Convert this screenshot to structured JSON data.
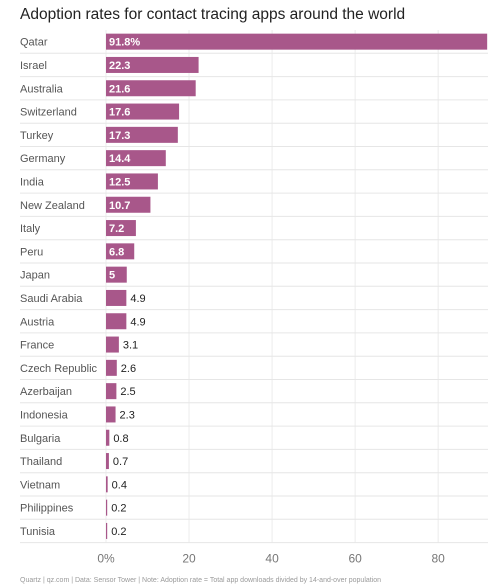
{
  "chart_data": {
    "type": "bar",
    "orientation": "horizontal",
    "title": "Adoption rates for contact tracing apps around the world",
    "footer": "Quartz | qz.com | Data: Sensor Tower | Note: Adoption rate = Total app downloads divided by 14-and-over population",
    "categories": [
      "Qatar",
      "Israel",
      "Australia",
      "Switzerland",
      "Turkey",
      "Germany",
      "India",
      "New Zealand",
      "Italy",
      "Peru",
      "Japan",
      "Saudi Arabia",
      "Austria",
      "France",
      "Czech Republic",
      "Azerbaijan",
      "Indonesia",
      "Bulgaria",
      "Thailand",
      "Vietnam",
      "Philippines",
      "Tunisia"
    ],
    "values": [
      91.8,
      22.3,
      21.6,
      17.6,
      17.3,
      14.4,
      12.5,
      10.7,
      7.2,
      6.8,
      5,
      4.9,
      4.9,
      3.1,
      2.6,
      2.5,
      2.3,
      0.8,
      0.7,
      0.4,
      0.2,
      0.2
    ],
    "value_labels": [
      "91.8%",
      "22.3",
      "21.6",
      "17.6",
      "17.3",
      "14.4",
      "12.5",
      "10.7",
      "7.2",
      "6.8",
      "5",
      "4.9",
      "4.9",
      "3.1",
      "2.6",
      "2.5",
      "2.3",
      "0.8",
      "0.7",
      "0.4",
      "0.2",
      "0.2"
    ],
    "xlim": [
      0,
      92
    ],
    "xticks": [
      0,
      20,
      40,
      60,
      80
    ],
    "xtick_labels": [
      "0%",
      "20",
      "40",
      "60",
      "80"
    ],
    "grid": true,
    "bar_color": "#a8578a"
  }
}
